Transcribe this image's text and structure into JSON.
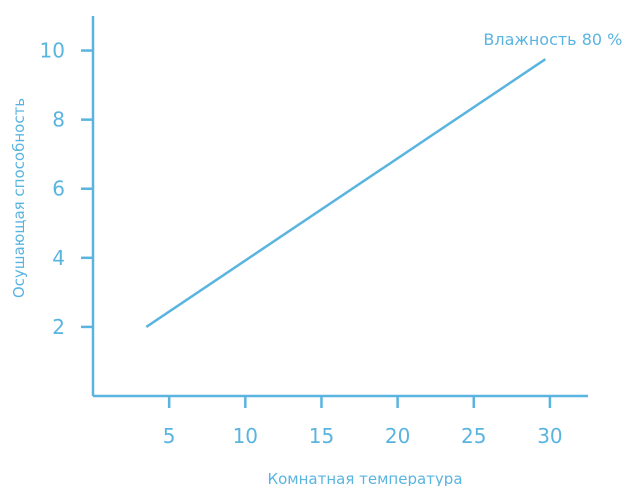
{
  "chart_data": {
    "type": "line",
    "xlabel": "Комнатная температура",
    "ylabel": "Осушающая способность",
    "xlim": [
      0,
      32.5
    ],
    "ylim": [
      0,
      11
    ],
    "x_ticks": [
      5,
      10,
      15,
      20,
      25,
      30
    ],
    "y_ticks": [
      2,
      4,
      6,
      8,
      10
    ],
    "grid": false,
    "color": "#5ab4e0",
    "series": [
      {
        "name": "Влажность 80 %",
        "x": [
          3.5,
          29.7
        ],
        "y": [
          2.0,
          9.75
        ]
      }
    ]
  }
}
